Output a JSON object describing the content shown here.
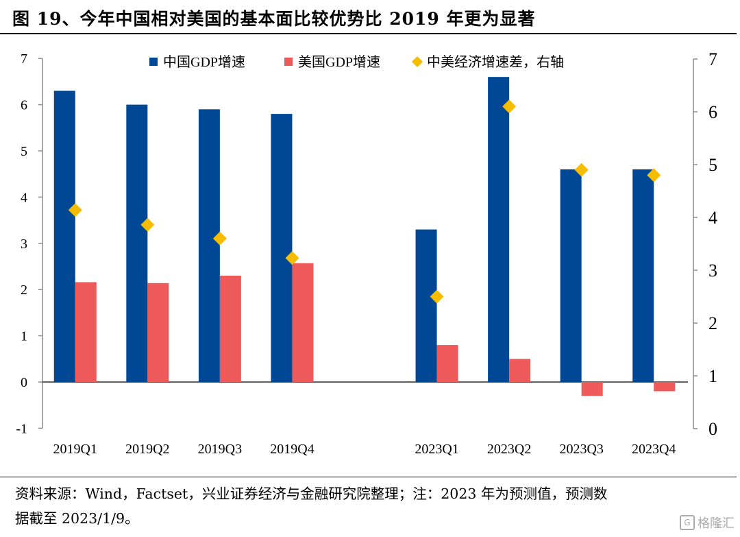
{
  "title": "图 19、今年中国相对美国的基本面比较优势比 2019 年更为显著",
  "source_line1": "资料来源：Wind，Factset，兴业证券经济与金融研究院整理；注：2023 年为预测值，预测数",
  "source_line2": "据截至 2023/1/9。",
  "watermark": "格隆汇",
  "colors": {
    "china": "#004896",
    "us": "#EE5A5A",
    "diff": "#F5BC00",
    "axis": "#8c8c8c"
  },
  "chart_data": {
    "type": "bar",
    "categories": [
      "2019Q1",
      "2019Q2",
      "2019Q3",
      "2019Q4",
      "",
      "2023Q1",
      "2023Q2",
      "2023Q3",
      "2023Q4"
    ],
    "series": [
      {
        "name": "中国GDP增速",
        "axis": "left",
        "kind": "bar",
        "values": [
          6.3,
          6.0,
          5.9,
          5.8,
          null,
          3.3,
          6.6,
          4.6,
          4.6
        ]
      },
      {
        "name": "美国GDP增速",
        "axis": "left",
        "kind": "bar",
        "values": [
          2.16,
          2.14,
          2.3,
          2.57,
          null,
          0.8,
          0.5,
          -0.3,
          -0.2
        ]
      },
      {
        "name": "中美经济增速差，右轴",
        "axis": "right",
        "kind": "scatter",
        "marker": "diamond",
        "values": [
          4.14,
          3.86,
          3.6,
          3.23,
          null,
          2.5,
          6.1,
          4.9,
          4.8
        ]
      }
    ],
    "y_left": {
      "lim": [
        -1,
        7
      ],
      "ticks": [
        "-1",
        "0",
        "1",
        "2",
        "3",
        "4",
        "5",
        "6",
        "7"
      ]
    },
    "y_right": {
      "lim": [
        0,
        7
      ],
      "ticks": [
        "0",
        "1",
        "2",
        "3",
        "4",
        "5",
        "6",
        "7"
      ]
    },
    "legend_position": "top-center",
    "grid": false
  }
}
